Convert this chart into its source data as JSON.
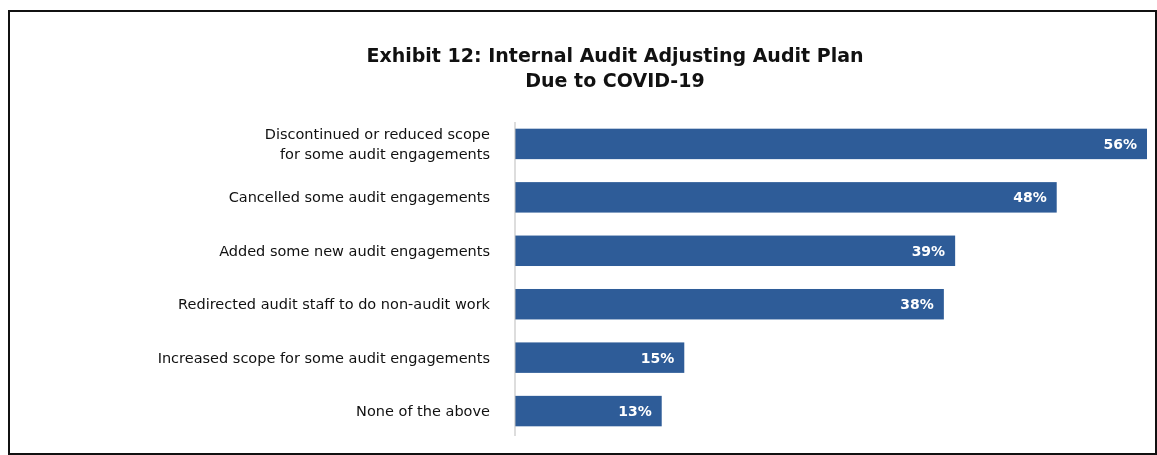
{
  "chart_data": {
    "type": "bar",
    "orientation": "horizontal",
    "title": "Exhibit 12: Internal Audit Adjusting Audit Plan\nDue to COVID-19",
    "categories": [
      "Discontinued or reduced scope\nfor some audit engagements",
      "Cancelled some audit engagements",
      "Added some new audit engagements",
      "Redirected audit staff to do non-audit work",
      "Increased scope for some audit engagements",
      "None of the above"
    ],
    "values": [
      56,
      48,
      39,
      38,
      15,
      13
    ],
    "value_labels": [
      "56%",
      "48%",
      "39%",
      "38%",
      "15%",
      "13%"
    ],
    "color": "#2e5c98"
  }
}
